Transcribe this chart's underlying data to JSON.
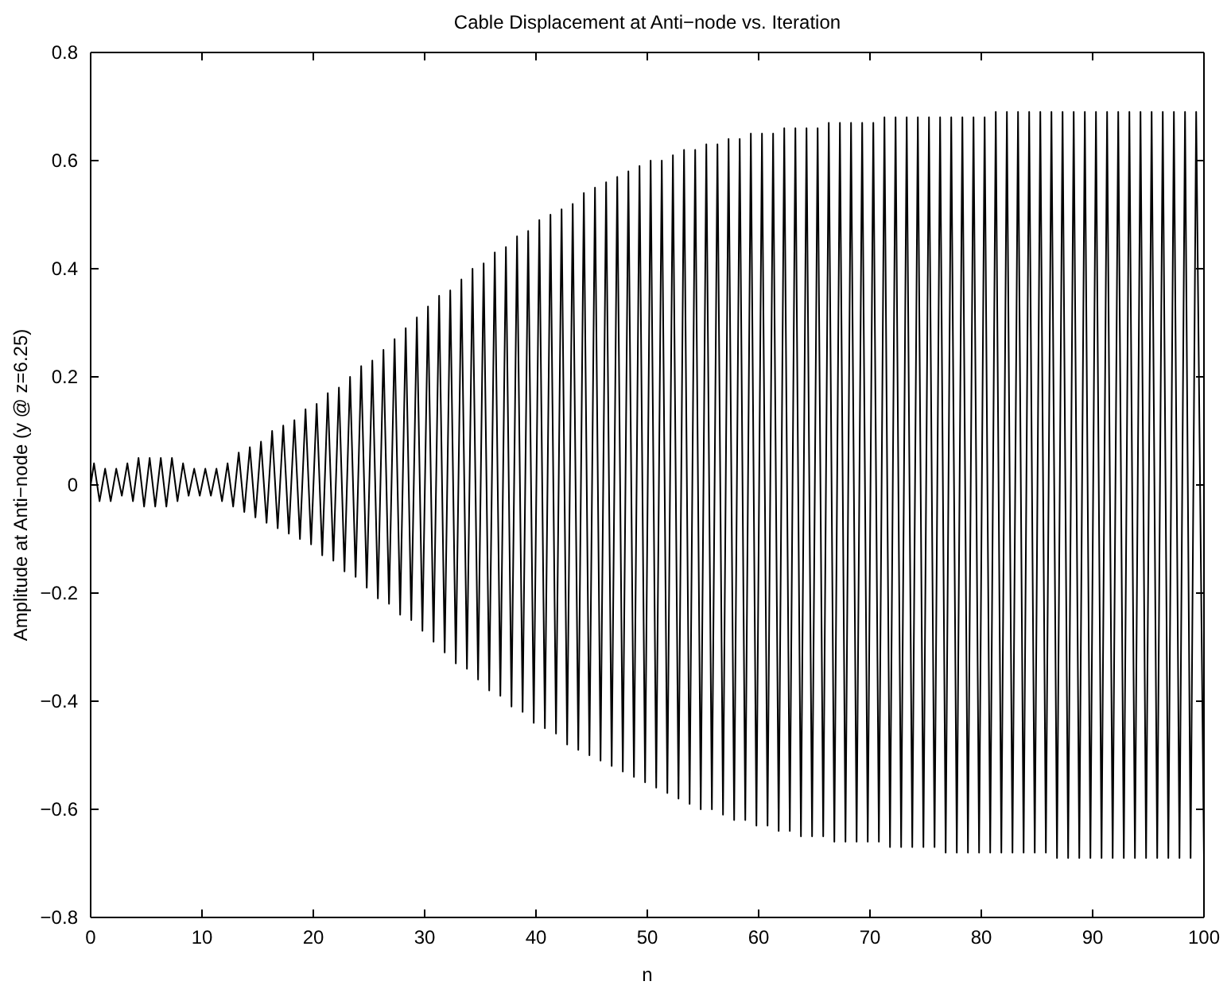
{
  "chart_data": {
    "type": "line",
    "title": "Cable Displacement at Anti−node vs. Iteration",
    "xlabel": "n",
    "ylabel": "Amplitude at Anti−node (y @ z=6.25)",
    "xlim": [
      0,
      100
    ],
    "ylim": [
      -0.8,
      0.8
    ],
    "xticks": [
      0,
      10,
      20,
      30,
      40,
      50,
      60,
      70,
      80,
      90,
      100
    ],
    "yticks": [
      {
        "value": -0.8,
        "label": "−0.8"
      },
      {
        "value": -0.6,
        "label": "−0.6"
      },
      {
        "value": -0.4,
        "label": "−0.4"
      },
      {
        "value": -0.2,
        "label": "−0.2"
      },
      0,
      0.2,
      0.4,
      0.6,
      0.8
    ],
    "grid": false,
    "marker": "none",
    "line_style": "solid",
    "series": [
      {
        "color": "#000000",
        "x": [
          0,
          0.3,
          0.8,
          1.3,
          1.8,
          2.3,
          2.8,
          3.3,
          3.8,
          4.3,
          4.8,
          5.3,
          5.8,
          6.3,
          6.8,
          7.3,
          7.8,
          8.3,
          8.8,
          9.3,
          9.8,
          10.3,
          10.8,
          11.3,
          11.8,
          12.3,
          12.8,
          13.3,
          13.8,
          14.3,
          14.8,
          15.3,
          15.8,
          16.3,
          16.8,
          17.3,
          17.8,
          18.3,
          18.8,
          19.3,
          19.8,
          20.3,
          20.8,
          21.3,
          21.8,
          22.3,
          22.8,
          23.3,
          23.8,
          24.3,
          24.8,
          25.3,
          25.8,
          26.3,
          26.8,
          27.3,
          27.8,
          28.3,
          28.8,
          29.3,
          29.8,
          30.3,
          30.8,
          31.3,
          31.8,
          32.3,
          32.8,
          33.3,
          33.8,
          34.3,
          34.8,
          35.3,
          35.8,
          36.3,
          36.8,
          37.3,
          37.8,
          38.3,
          38.8,
          39.3,
          39.8,
          40.3,
          40.8,
          41.3,
          41.8,
          42.3,
          42.8,
          43.3,
          43.8,
          44.3,
          44.8,
          45.3,
          45.8,
          46.3,
          46.8,
          47.3,
          47.8,
          48.3,
          48.8,
          49.3,
          49.8,
          50.3,
          50.8,
          51.3,
          51.8,
          52.3,
          52.8,
          53.3,
          53.8,
          54.3,
          54.8,
          55.3,
          55.8,
          56.3,
          56.8,
          57.3,
          57.8,
          58.3,
          58.8,
          59.3,
          59.8,
          60.3,
          60.8,
          61.3,
          61.8,
          62.3,
          62.8,
          63.3,
          63.8,
          64.3,
          64.8,
          65.3,
          65.8,
          66.3,
          66.8,
          67.3,
          67.8,
          68.3,
          68.8,
          69.3,
          69.8,
          70.3,
          70.8,
          71.3,
          71.8,
          72.3,
          72.8,
          73.3,
          73.8,
          74.3,
          74.8,
          75.3,
          75.8,
          76.3,
          76.8,
          77.3,
          77.8,
          78.3,
          78.8,
          79.3,
          79.8,
          80.3,
          80.8,
          81.3,
          81.8,
          82.3,
          82.8,
          83.3,
          83.8,
          84.3,
          84.8,
          85.3,
          85.8,
          86.3,
          86.8,
          87.3,
          87.8,
          88.3,
          88.8,
          89.3,
          89.8,
          90.3,
          90.8,
          91.3,
          91.8,
          92.3,
          92.8,
          93.3,
          93.8,
          94.3,
          94.8,
          95.3,
          95.8,
          96.3,
          96.8,
          97.3,
          97.8,
          98.3,
          98.8,
          99.3,
          100
        ],
        "values": [
          0,
          0.04,
          -0.03,
          0.03,
          -0.03,
          0.03,
          -0.02,
          0.04,
          -0.03,
          0.05,
          -0.04,
          0.05,
          -0.04,
          0.05,
          -0.04,
          0.05,
          -0.03,
          0.04,
          -0.02,
          0.03,
          -0.02,
          0.03,
          -0.02,
          0.03,
          -0.03,
          0.04,
          -0.04,
          0.06,
          -0.05,
          0.07,
          -0.06,
          0.08,
          -0.07,
          0.1,
          -0.08,
          0.11,
          -0.09,
          0.12,
          -0.1,
          0.14,
          -0.11,
          0.15,
          -0.13,
          0.17,
          -0.14,
          0.18,
          -0.16,
          0.2,
          -0.17,
          0.22,
          -0.19,
          0.23,
          -0.21,
          0.25,
          -0.22,
          0.27,
          -0.24,
          0.29,
          -0.25,
          0.31,
          -0.27,
          0.33,
          -0.29,
          0.35,
          -0.31,
          0.36,
          -0.33,
          0.38,
          -0.34,
          0.4,
          -0.36,
          0.41,
          -0.38,
          0.43,
          -0.39,
          0.44,
          -0.41,
          0.46,
          -0.42,
          0.47,
          -0.44,
          0.49,
          -0.45,
          0.5,
          -0.46,
          0.51,
          -0.48,
          0.52,
          -0.49,
          0.54,
          -0.5,
          0.55,
          -0.51,
          0.56,
          -0.52,
          0.57,
          -0.53,
          0.58,
          -0.54,
          0.59,
          -0.55,
          0.6,
          -0.56,
          0.6,
          -0.57,
          0.61,
          -0.58,
          0.62,
          -0.59,
          0.62,
          -0.6,
          0.63,
          -0.6,
          0.63,
          -0.61,
          0.64,
          -0.62,
          0.64,
          -0.62,
          0.65,
          -0.63,
          0.65,
          -0.63,
          0.65,
          -0.64,
          0.66,
          -0.64,
          0.66,
          -0.65,
          0.66,
          -0.65,
          0.66,
          -0.65,
          0.67,
          -0.66,
          0.67,
          -0.66,
          0.67,
          -0.66,
          0.67,
          -0.66,
          0.67,
          -0.66,
          0.68,
          -0.67,
          0.68,
          -0.67,
          0.68,
          -0.67,
          0.68,
          -0.67,
          0.68,
          -0.67,
          0.68,
          -0.68,
          0.68,
          -0.68,
          0.68,
          -0.68,
          0.68,
          -0.68,
          0.68,
          -0.68,
          0.69,
          -0.68,
          0.69,
          -0.68,
          0.69,
          -0.68,
          0.69,
          -0.68,
          0.69,
          -0.68,
          0.69,
          -0.69,
          0.69,
          -0.69,
          0.69,
          -0.69,
          0.69,
          -0.69,
          0.69,
          -0.69,
          0.69,
          -0.69,
          0.69,
          -0.69,
          0.69,
          -0.69,
          0.69,
          -0.69,
          0.69,
          -0.69,
          0.69,
          -0.69,
          0.69,
          -0.69,
          0.69,
          -0.69,
          0.69,
          -0.69
        ]
      }
    ]
  }
}
